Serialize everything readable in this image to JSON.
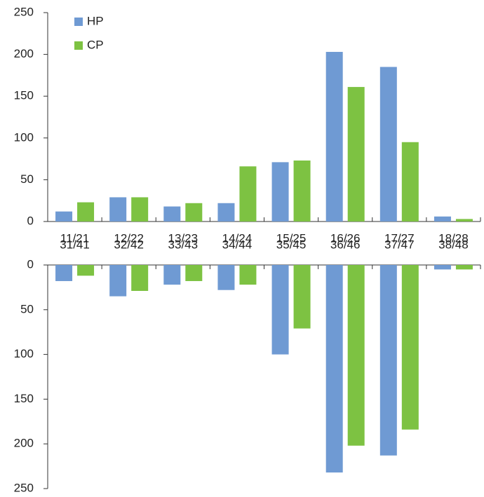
{
  "chart_data": [
    {
      "type": "bar",
      "categories": [
        "11/21",
        "12/22",
        "13/23",
        "14/24",
        "15/25",
        "16/26",
        "17/27",
        "18/28"
      ],
      "series": [
        {
          "name": "HP",
          "color": "#6f9ad3",
          "values": [
            12,
            29,
            18,
            22,
            71,
            203,
            185,
            6
          ]
        },
        {
          "name": "CP",
          "color": "#7dc242",
          "values": [
            23,
            29,
            22,
            66,
            73,
            161,
            95,
            3
          ]
        }
      ],
      "ylim": [
        0,
        250
      ],
      "yticks": [
        0,
        50,
        100,
        150,
        200,
        250
      ],
      "legend": "upper left"
    },
    {
      "type": "bar",
      "categories": [
        "31/41",
        "32/42",
        "33/43",
        "34/44",
        "35/45",
        "36/46",
        "37/47",
        "38/48"
      ],
      "series": [
        {
          "color": "#6f9ad3",
          "values": [
            18,
            35,
            22,
            28,
            100,
            232,
            213,
            5
          ]
        },
        {
          "color": "#7dc242",
          "values": [
            12,
            29,
            18,
            22,
            71,
            202,
            184,
            5
          ]
        }
      ],
      "ylim": [
        0,
        250
      ],
      "yticks": [
        0,
        50,
        100,
        150,
        200,
        250
      ],
      "y_inverted": true
    }
  ]
}
